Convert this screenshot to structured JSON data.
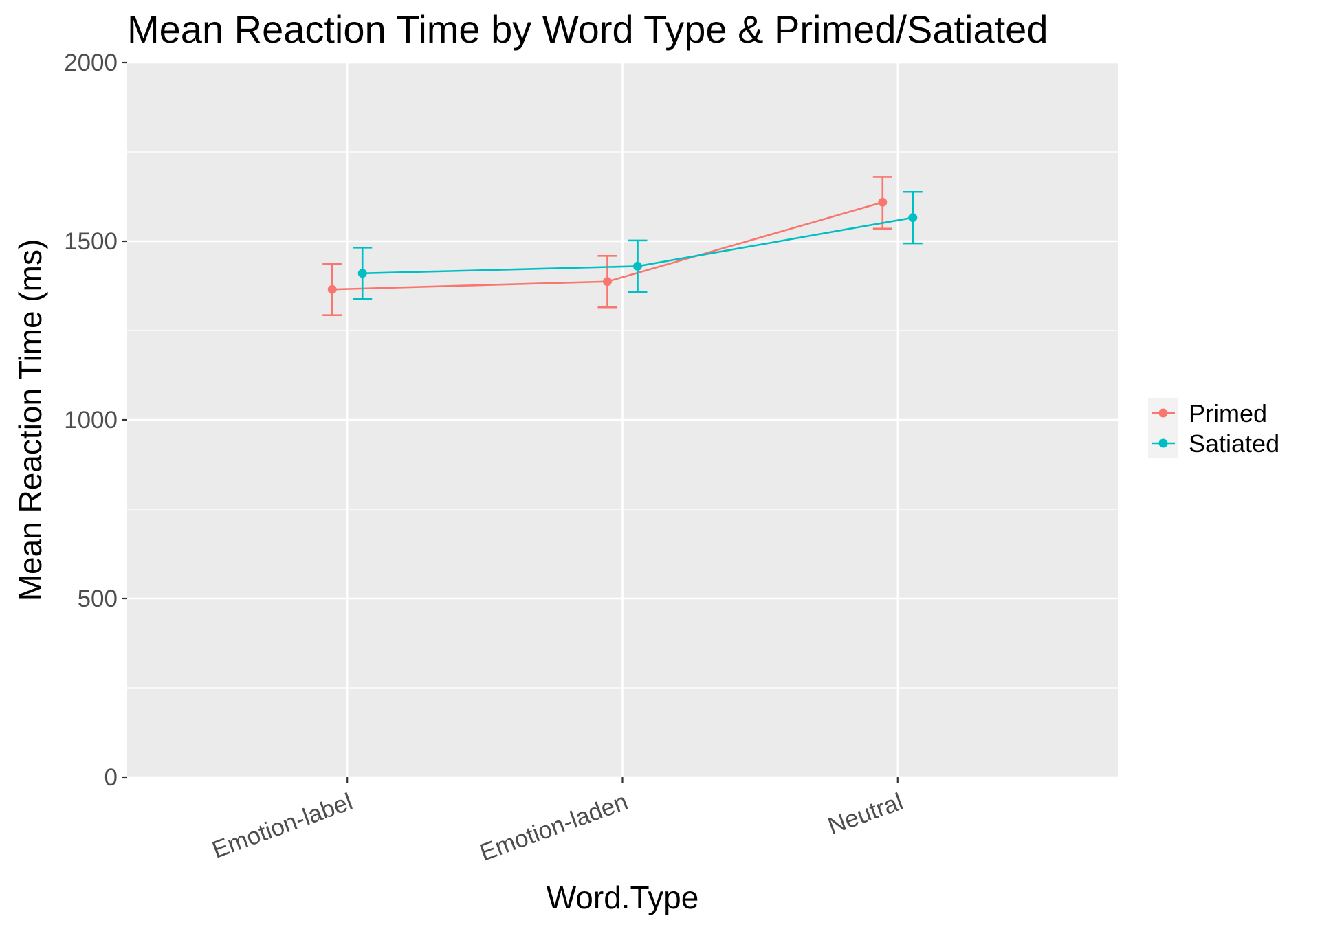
{
  "chart_data": {
    "type": "line",
    "title": "Mean Reaction Time by Word Type & Primed/Satiated",
    "xlabel": "Word.Type",
    "ylabel": "Mean Reaction Time (ms)",
    "categories": [
      "Emotion-label",
      "Emotion-laden",
      "Neutral"
    ],
    "ylim": [
      0,
      2000
    ],
    "yticks": [
      0,
      500,
      1000,
      1500,
      2000
    ],
    "ytick_labels": [
      "0",
      "500",
      "1000",
      "1500",
      "2000"
    ],
    "grid": true,
    "legend_position": "right",
    "series": [
      {
        "name": "Primed",
        "color": "#F8766D",
        "values": [
          1365,
          1387,
          1609
        ],
        "error_low": [
          1293,
          1315,
          1535
        ],
        "error_high": [
          1437,
          1459,
          1680
        ]
      },
      {
        "name": "Satiated",
        "color": "#00BFC4",
        "values": [
          1410,
          1430,
          1566
        ],
        "error_low": [
          1338,
          1358,
          1494
        ],
        "error_high": [
          1482,
          1502,
          1638
        ]
      }
    ]
  }
}
